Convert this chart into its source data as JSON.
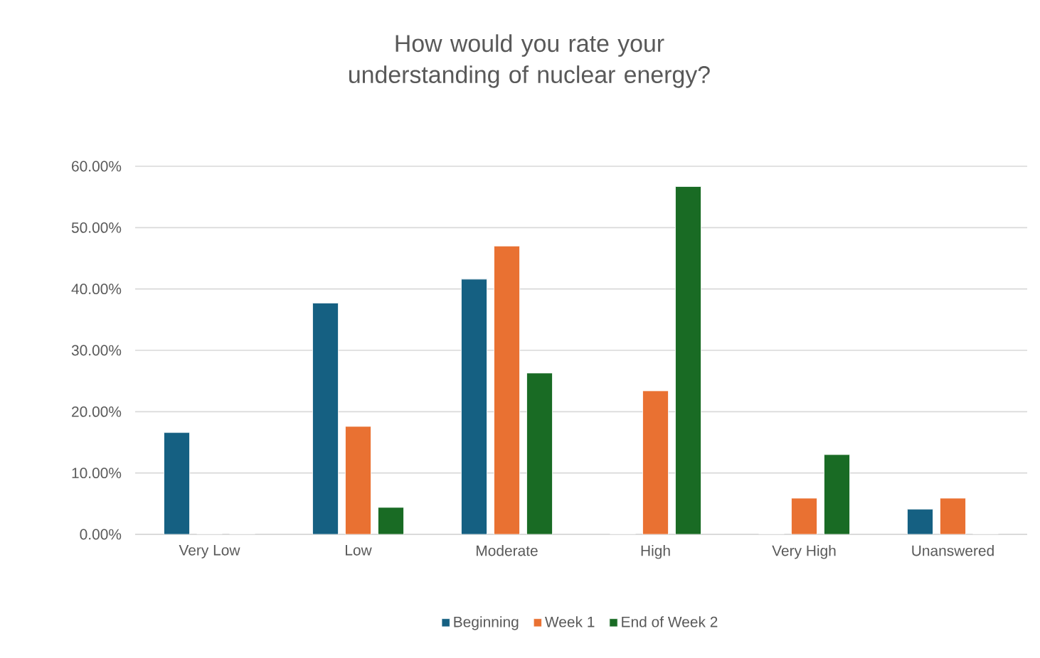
{
  "chart_data": {
    "type": "bar",
    "title": "How would you rate your understanding of nuclear energy?",
    "categories": [
      "Very Low",
      "Low",
      "Moderate",
      "High",
      "Very High",
      "Unanswered"
    ],
    "series": [
      {
        "name": "Beginning",
        "color": "#156082",
        "values": [
          16.6,
          37.7,
          41.6,
          0,
          0,
          4.1
        ]
      },
      {
        "name": "Week 1",
        "color": "#e97132",
        "values": [
          0,
          17.6,
          47.0,
          23.4,
          5.9,
          5.9
        ]
      },
      {
        "name": "End of Week 2",
        "color": "#196b24",
        "values": [
          0,
          4.4,
          26.3,
          56.7,
          13.0,
          0
        ]
      }
    ],
    "ylim": [
      0,
      60
    ],
    "yticks": [
      {
        "value": 0,
        "label": "0.00%"
      },
      {
        "value": 10,
        "label": "10.00%"
      },
      {
        "value": 20,
        "label": "20.00%"
      },
      {
        "value": 30,
        "label": "30.00%"
      },
      {
        "value": 40,
        "label": "40.00%"
      },
      {
        "value": 50,
        "label": "50.00%"
      },
      {
        "value": 60,
        "label": "60.00%"
      }
    ],
    "grid": "y",
    "legend": "bottom"
  }
}
